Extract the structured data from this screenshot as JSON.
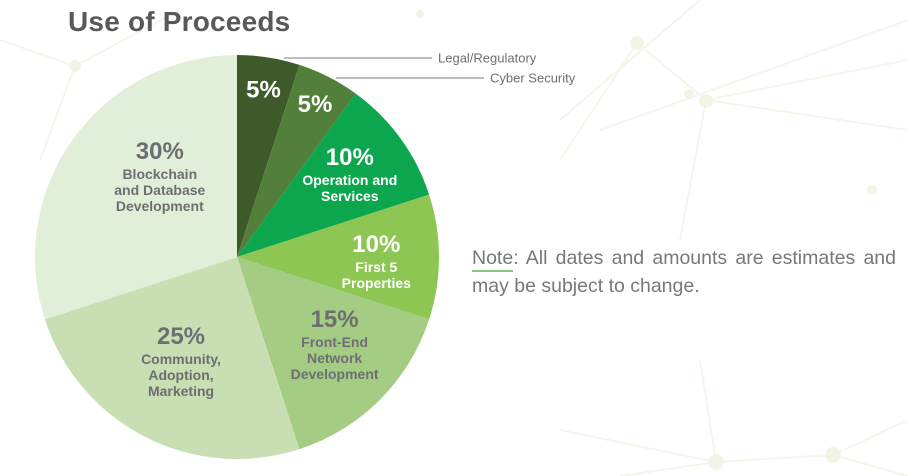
{
  "page": {
    "title": "Use of Proceeds",
    "note": {
      "label": "Note",
      "separator": ": ",
      "text": "All dates and amounts are estimates and may be subject to change."
    }
  },
  "colors": {
    "title_text": "#58595b",
    "slice_gray_text": "#6d6e71",
    "note_text": "#77787b",
    "note_underline": "#85c97d",
    "callout_line": "#7d7e81",
    "background": "#ffffff"
  },
  "chart_data": {
    "type": "pie",
    "title": "Use of Proceeds",
    "start_angle_deg": 0,
    "direction": "clockwise",
    "legend_position": "none",
    "units": "percent",
    "slices": [
      {
        "label": "Legal/Regulatory",
        "value": 5,
        "pct_label": "5%",
        "color": "#3e5a2b",
        "text_color": "#ffffff",
        "name_lines": [],
        "callout": true,
        "label_r": 0.84
      },
      {
        "label": "Cyber Security",
        "value": 5,
        "pct_label": "5%",
        "color": "#527f3a",
        "text_color": "#ffffff",
        "name_lines": [],
        "callout": true,
        "label_r": 0.85
      },
      {
        "label": "Operation and Services",
        "value": 10,
        "pct_label": "10%",
        "color": "#0ca64f",
        "text_color": "#ffffff",
        "name_lines": [
          "Operation and",
          "Services"
        ],
        "callout": false,
        "label_r": 0.69
      },
      {
        "label": "First 5 Properties",
        "value": 10,
        "pct_label": "10%",
        "color": "#8dc653",
        "text_color": "#ffffff",
        "name_lines": [
          "First 5",
          "Properties"
        ],
        "callout": false,
        "label_r": 0.69,
        "label_angle": 92
      },
      {
        "label": "Front-End Network Development",
        "value": 15,
        "pct_label": "15%",
        "color": "#a4cc83",
        "text_color": "#6d6e71",
        "name_lines": [
          "Front-End",
          "Network",
          "Development"
        ],
        "callout": false,
        "label_r": 0.65,
        "label_angle": 132
      },
      {
        "label": "Community, Adoption, Marketing",
        "value": 25,
        "pct_label": "25%",
        "color": "#c7dfb2",
        "text_color": "#6d6e71",
        "name_lines": [
          "Community,",
          "Adoption,",
          "Marketing"
        ],
        "callout": false,
        "label_r": 0.59,
        "label_angle": 208
      },
      {
        "label": "Blockchain and Database Development",
        "value": 30,
        "pct_label": "30%",
        "color": "#e2efd8",
        "text_color": "#6d6e71",
        "name_lines": [
          "Blockchain",
          "and Database",
          "Development"
        ],
        "callout": false,
        "label_r": 0.55,
        "label_angle": 316
      }
    ]
  }
}
